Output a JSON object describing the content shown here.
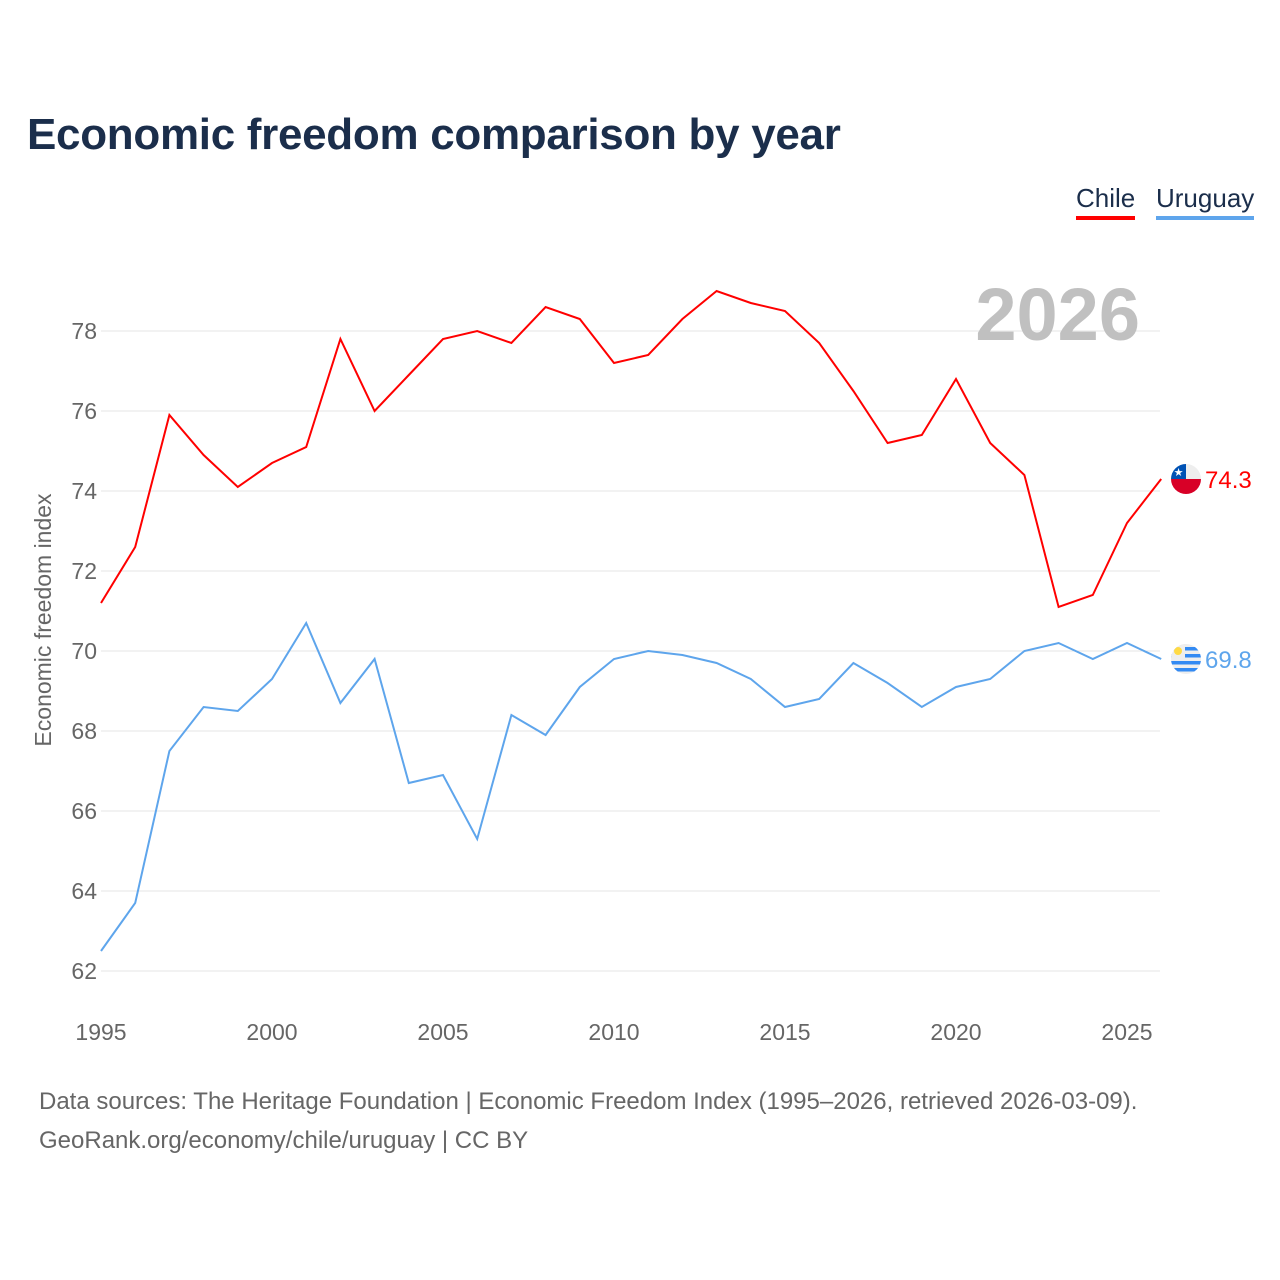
{
  "title": "Economic freedom comparison by year",
  "source_line1": "Data sources: The Heritage Foundation | Economic Freedom Index (1995–2026, retrieved 2026-03-09).",
  "source_line2": "GeoRank.org/economy/chile/uruguay | CC BY",
  "chart_data": {
    "type": "line",
    "title": "Economic freedom comparison by year",
    "xlabel": "",
    "ylabel": "Economic freedom index",
    "year_watermark": "2026",
    "xlim": [
      1995,
      2026
    ],
    "ylim": [
      62,
      79.5
    ],
    "xticks": [
      1995,
      2000,
      2005,
      2010,
      2015,
      2020,
      2025
    ],
    "yticks": [
      62,
      64,
      66,
      68,
      70,
      72,
      74,
      76,
      78
    ],
    "grid": true,
    "legend_position": "top-right",
    "x": [
      1995,
      1996,
      1997,
      1998,
      1999,
      2000,
      2001,
      2002,
      2003,
      2004,
      2005,
      2006,
      2007,
      2008,
      2009,
      2010,
      2011,
      2012,
      2013,
      2014,
      2015,
      2016,
      2017,
      2018,
      2019,
      2020,
      2021,
      2022,
      2023,
      2024,
      2025,
      2026
    ],
    "series": [
      {
        "name": "Chile",
        "color": "#ff0000",
        "end_label": "74.3",
        "flag": "chile-flag",
        "values": [
          71.2,
          72.6,
          75.9,
          74.9,
          74.1,
          74.7,
          75.1,
          77.8,
          76.0,
          76.9,
          77.8,
          78.0,
          77.7,
          78.6,
          78.3,
          77.2,
          77.4,
          78.3,
          79.0,
          78.7,
          78.5,
          77.7,
          76.5,
          75.2,
          75.4,
          76.8,
          75.2,
          74.4,
          71.1,
          71.4,
          73.2,
          74.3
        ]
      },
      {
        "name": "Uruguay",
        "color": "#5ea5ec",
        "end_label": "69.8",
        "flag": "uruguay-flag",
        "values": [
          62.5,
          63.7,
          67.5,
          68.6,
          68.5,
          69.3,
          70.7,
          68.7,
          69.8,
          66.7,
          66.9,
          65.3,
          68.4,
          67.9,
          69.1,
          69.8,
          70.0,
          69.9,
          69.7,
          69.3,
          68.6,
          68.8,
          69.7,
          69.2,
          68.6,
          69.1,
          69.3,
          70.0,
          70.2,
          69.8,
          70.2,
          69.8
        ]
      }
    ]
  }
}
